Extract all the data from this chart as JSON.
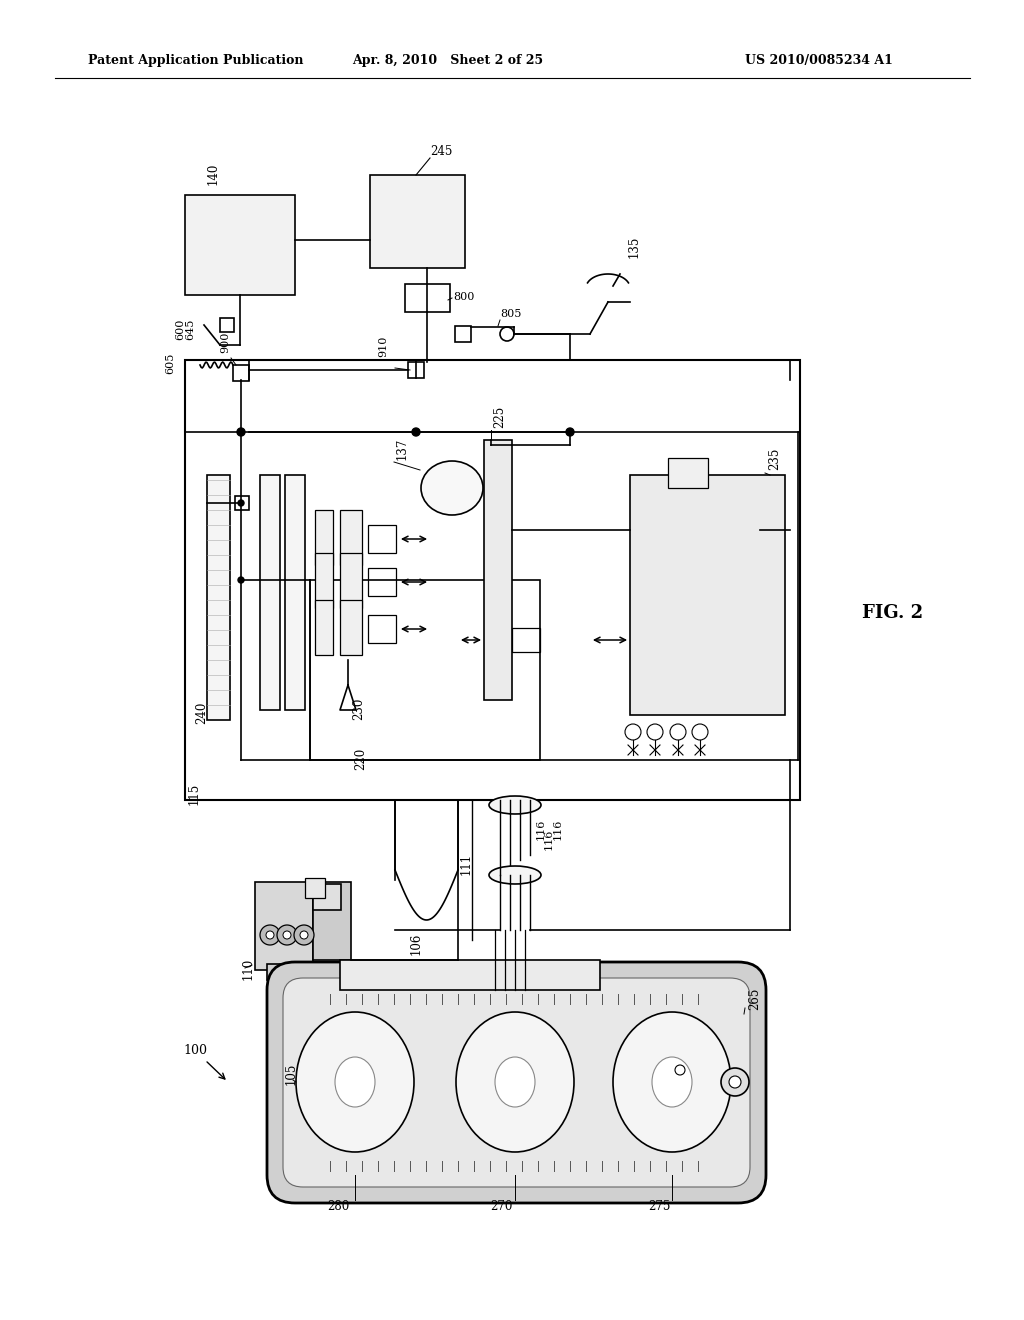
{
  "bg_color": "#ffffff",
  "text_color": "#000000",
  "header_left": "Patent Application Publication",
  "header_mid": "Apr. 8, 2010   Sheet 2 of 25",
  "header_right": "US 2010/0085234 A1",
  "fig_label": "FIG. 2"
}
